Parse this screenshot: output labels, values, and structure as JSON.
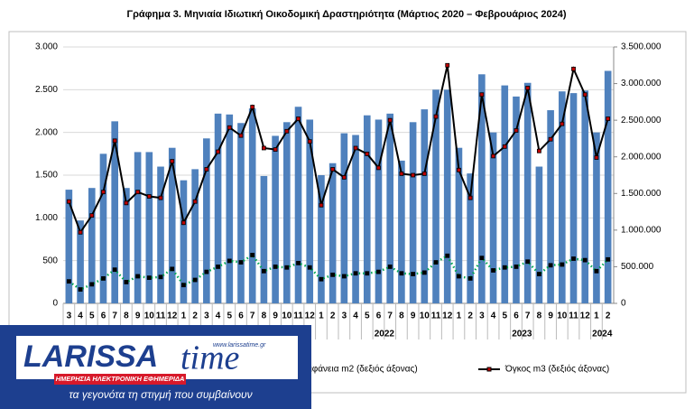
{
  "chart_data": {
    "type": "bar_line",
    "title": "Γράφημα 3. Μηνιαία Ιδιωτική Οικοδομική Δραστηριότητα (Μάρτιος 2020 – Φεβρουάριος 2024)",
    "categories": [
      "3",
      "4",
      "5",
      "6",
      "7",
      "8",
      "9",
      "10",
      "11",
      "12",
      "1",
      "2",
      "3",
      "4",
      "5",
      "6",
      "7",
      "8",
      "9",
      "10",
      "11",
      "12",
      "1",
      "2",
      "3",
      "4",
      "5",
      "6",
      "7",
      "8",
      "9",
      "10",
      "11",
      "12",
      "1",
      "2",
      "3",
      "4",
      "5",
      "6",
      "7",
      "8",
      "9",
      "10",
      "11",
      "12",
      "1",
      "2"
    ],
    "year_labels": [
      "2022",
      "2023",
      "2024"
    ],
    "ylim": [
      0,
      3000
    ],
    "yticks": [
      {
        "value": 0,
        "label": "0"
      },
      {
        "value": 500,
        "label": "500"
      },
      {
        "value": 1000,
        "label": "1.000"
      },
      {
        "value": 1500,
        "label": "1.500"
      },
      {
        "value": 2000,
        "label": "2.000"
      },
      {
        "value": 2500,
        "label": "2.500"
      },
      {
        "value": 3000,
        "label": "3.000"
      }
    ],
    "y2lim": [
      0,
      3500000
    ],
    "y2ticks": [
      0,
      {
        "value": 500000,
        "label": "500.000"
      },
      {
        "value": 1000000,
        "label": "1.000.000"
      },
      {
        "value": 1500000,
        "label": "1.500.000"
      },
      {
        "value": 2000000,
        "label": "2.000.000"
      },
      {
        "value": 2500000,
        "label": "2.500.000"
      },
      {
        "value": 3000000,
        "label": "3.000.000"
      },
      {
        "value": 3500000,
        "label": "3.500.000"
      }
    ],
    "grid": true,
    "series": [
      {
        "kind": "bar",
        "color": "#4f81bd",
        "values": [
          1330,
          970,
          1350,
          1750,
          2130,
          1350,
          1770,
          1770,
          1600,
          1820,
          1440,
          1570,
          1930,
          2220,
          2210,
          2110,
          2280,
          1490,
          1960,
          2120,
          2300,
          2150,
          1500,
          1640,
          1990,
          1970,
          2200,
          2150,
          2220,
          1670,
          2120,
          2270,
          2500,
          2500,
          1820,
          1520,
          2680,
          2000,
          2550,
          2420,
          2580,
          1600,
          2260,
          2480,
          2460,
          2490,
          2000,
          2720
        ]
      },
      {
        "kind": "dotted",
        "name": "Επιφάνεια m2 (δεξιός άξονας)",
        "axis": "y2",
        "color": "#00a651",
        "values": [
          300000,
          190000,
          260000,
          340000,
          460000,
          290000,
          370000,
          350000,
          360000,
          470000,
          250000,
          320000,
          430000,
          500000,
          580000,
          560000,
          660000,
          440000,
          500000,
          490000,
          550000,
          490000,
          330000,
          390000,
          370000,
          410000,
          410000,
          430000,
          500000,
          410000,
          400000,
          420000,
          560000,
          650000,
          370000,
          340000,
          620000,
          450000,
          490000,
          500000,
          570000,
          400000,
          520000,
          530000,
          610000,
          590000,
          440000,
          600000
        ]
      },
      {
        "kind": "line",
        "name": "Όγκος m3 (δεξιός άξονας)",
        "axis": "y2",
        "color": "#c00000",
        "values": [
          1390000,
          970000,
          1200000,
          1520000,
          2220000,
          1370000,
          1520000,
          1460000,
          1440000,
          1940000,
          1100000,
          1390000,
          1830000,
          2070000,
          2400000,
          2290000,
          2680000,
          2120000,
          2100000,
          2350000,
          2520000,
          2210000,
          1340000,
          1830000,
          1720000,
          2120000,
          2040000,
          1850000,
          2500000,
          1770000,
          1750000,
          1770000,
          2550000,
          3250000,
          1820000,
          1440000,
          2850000,
          2010000,
          2140000,
          2360000,
          2940000,
          2080000,
          2240000,
          2450000,
          3200000,
          2850000,
          1990000,
          2520000
        ]
      }
    ]
  },
  "logo": {
    "brand": "LARISSA",
    "brand2": "time",
    "url": "www.larissatime.gr",
    "tagline": "ΗΜΕΡΗΣΙΑ ΗΛΕΚΤΡΟΝΙΚΗ ΕΦΗΜΕΡΙΔΑ",
    "slogan": "τα γεγονότα τη στιγμή που συμβαίνουν"
  }
}
